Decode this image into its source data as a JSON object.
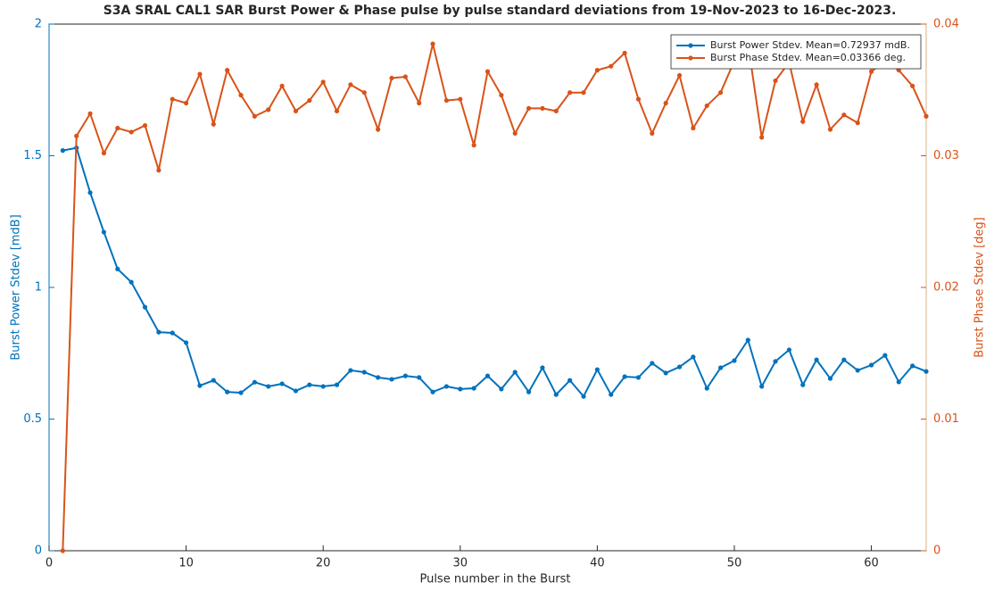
{
  "chart_data": {
    "type": "line",
    "title": "S3A SRAL CAL1 SAR Burst Power & Phase pulse by pulse standard deviations from 19-Nov-2023 to 16-Dec-2023.",
    "xlabel": "Pulse number in the Burst",
    "ylabel": "Burst Power Stdev [mdB]",
    "y2label": "Burst Phase Stdev [deg]",
    "x": [
      1,
      2,
      3,
      4,
      5,
      6,
      7,
      8,
      9,
      10,
      11,
      12,
      13,
      14,
      15,
      16,
      17,
      18,
      19,
      20,
      21,
      22,
      23,
      24,
      25,
      26,
      27,
      28,
      29,
      30,
      31,
      32,
      33,
      34,
      35,
      36,
      37,
      38,
      39,
      40,
      41,
      42,
      43,
      44,
      45,
      46,
      47,
      48,
      49,
      50,
      51,
      52,
      53,
      54,
      55,
      56,
      57,
      58,
      59,
      60,
      61,
      62,
      63,
      64
    ],
    "xlim": [
      0,
      64
    ],
    "xticks": [
      0,
      10,
      20,
      30,
      40,
      50,
      60
    ],
    "ylim": [
      0,
      2
    ],
    "yticks": [
      0,
      0.5,
      1,
      1.5,
      2
    ],
    "y2lim": [
      0,
      0.04
    ],
    "y2ticks": [
      0,
      0.01,
      0.02,
      0.03,
      0.04
    ],
    "legend": "upper right",
    "grid": false,
    "series": [
      {
        "name": "Burst Power Stdev. Mean=0.72937 mdB.",
        "color": "#0072bd",
        "axis": "y",
        "values": [
          1.52,
          1.53,
          1.36,
          1.21,
          1.07,
          1.02,
          0.925,
          0.83,
          0.827,
          0.79,
          0.627,
          0.647,
          0.603,
          0.6,
          0.64,
          0.624,
          0.634,
          0.607,
          0.63,
          0.624,
          0.63,
          0.685,
          0.678,
          0.658,
          0.651,
          0.664,
          0.658,
          0.603,
          0.624,
          0.614,
          0.617,
          0.664,
          0.614,
          0.678,
          0.603,
          0.695,
          0.593,
          0.647,
          0.586,
          0.688,
          0.593,
          0.661,
          0.658,
          0.712,
          0.675,
          0.698,
          0.736,
          0.617,
          0.695,
          0.722,
          0.8,
          0.624,
          0.719,
          0.763,
          0.63,
          0.725,
          0.654,
          0.725,
          0.685,
          0.705,
          0.742,
          0.641,
          0.702,
          0.681
        ]
      },
      {
        "name": "Burst Phase Stdev. Mean=0.03366 deg.",
        "color": "#d95319",
        "axis": "y2",
        "values": [
          0,
          0.0315,
          0.0332,
          0.0302,
          0.0321,
          0.0318,
          0.0323,
          0.0289,
          0.0343,
          0.034,
          0.0362,
          0.0324,
          0.0365,
          0.0346,
          0.033,
          0.0335,
          0.0353,
          0.0334,
          0.0342,
          0.0356,
          0.0334,
          0.0354,
          0.0348,
          0.032,
          0.0359,
          0.036,
          0.034,
          0.0385,
          0.0342,
          0.0343,
          0.0308,
          0.0364,
          0.0346,
          0.0317,
          0.0336,
          0.0336,
          0.0334,
          0.0348,
          0.0348,
          0.0365,
          0.0368,
          0.0378,
          0.0343,
          0.0317,
          0.034,
          0.0361,
          0.0321,
          0.0338,
          0.0348,
          0.0372,
          0.0385,
          0.0314,
          0.0357,
          0.0371,
          0.0326,
          0.0354,
          0.032,
          0.0331,
          0.0325,
          0.0364,
          0.0372,
          0.0365,
          0.0353,
          0.033
        ]
      }
    ]
  }
}
